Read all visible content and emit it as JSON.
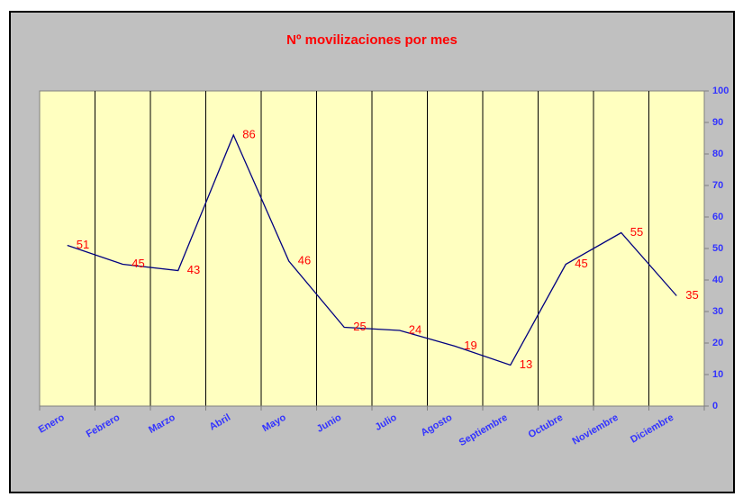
{
  "chart_data": {
    "type": "line",
    "title": "Nº movilizaciones por mes",
    "categories": [
      "Enero",
      "Febrero",
      "Marzo",
      "Abril",
      "Mayo",
      "Junio",
      "Julio",
      "Agosto",
      "Septiembre",
      "Octubre",
      "Noviembre",
      "Diciembre"
    ],
    "values": [
      51,
      45,
      43,
      86,
      46,
      25,
      24,
      19,
      13,
      45,
      55,
      35
    ],
    "color": "#000080",
    "ylim": [
      0,
      100
    ],
    "yticks": [
      0,
      10,
      20,
      30,
      40,
      50,
      60,
      70,
      80,
      90,
      100
    ],
    "grid": true
  }
}
